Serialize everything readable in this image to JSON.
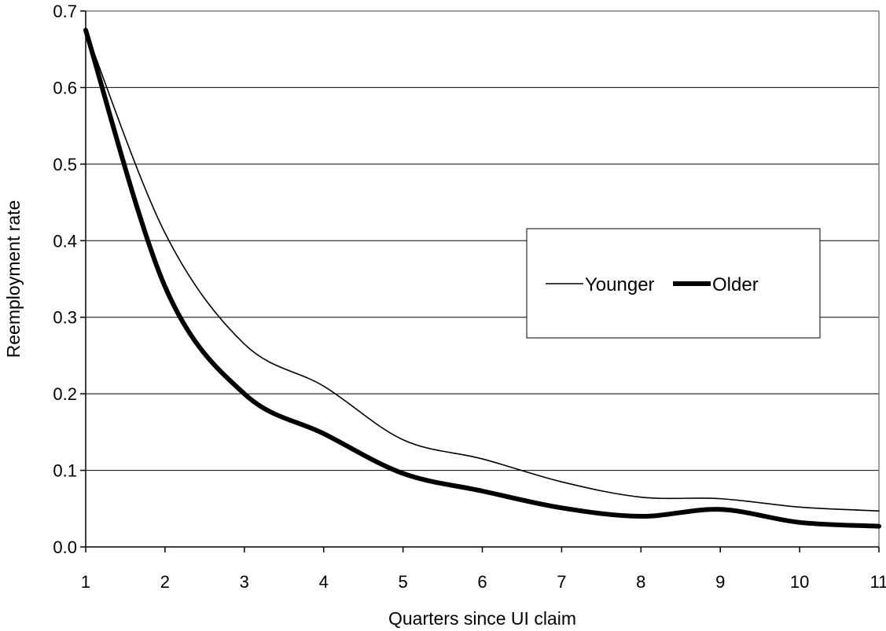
{
  "chart_data": {
    "type": "line",
    "xlabel": "Quarters since UI claim",
    "ylabel": "Reemployment rate",
    "x": [
      1,
      2,
      3,
      4,
      5,
      6,
      7,
      8,
      9,
      10,
      11
    ],
    "xlim": [
      1,
      11
    ],
    "ylim": [
      0,
      0.7
    ],
    "x_ticks": [
      "1",
      "2",
      "3",
      "4",
      "5",
      "6",
      "7",
      "8",
      "9",
      "10",
      "11"
    ],
    "y_ticks": [
      "0.0",
      "0.1",
      "0.2",
      "0.3",
      "0.4",
      "0.5",
      "0.6",
      "0.7"
    ],
    "y_tick_values": [
      0,
      0.1,
      0.2,
      0.3,
      0.4,
      0.5,
      0.6,
      0.7
    ],
    "grid": "horizontal",
    "legend_position": "right",
    "series": [
      {
        "name": "Younger",
        "values": [
          0.675,
          0.41,
          0.265,
          0.21,
          0.14,
          0.115,
          0.085,
          0.065,
          0.063,
          0.052,
          0.047
        ],
        "color": "#000000",
        "style": "thin"
      },
      {
        "name": "Older",
        "values": [
          0.675,
          0.34,
          0.2,
          0.148,
          0.096,
          0.073,
          0.051,
          0.04,
          0.049,
          0.032,
          0.027
        ],
        "color": "#000000",
        "style": "thick"
      }
    ]
  }
}
